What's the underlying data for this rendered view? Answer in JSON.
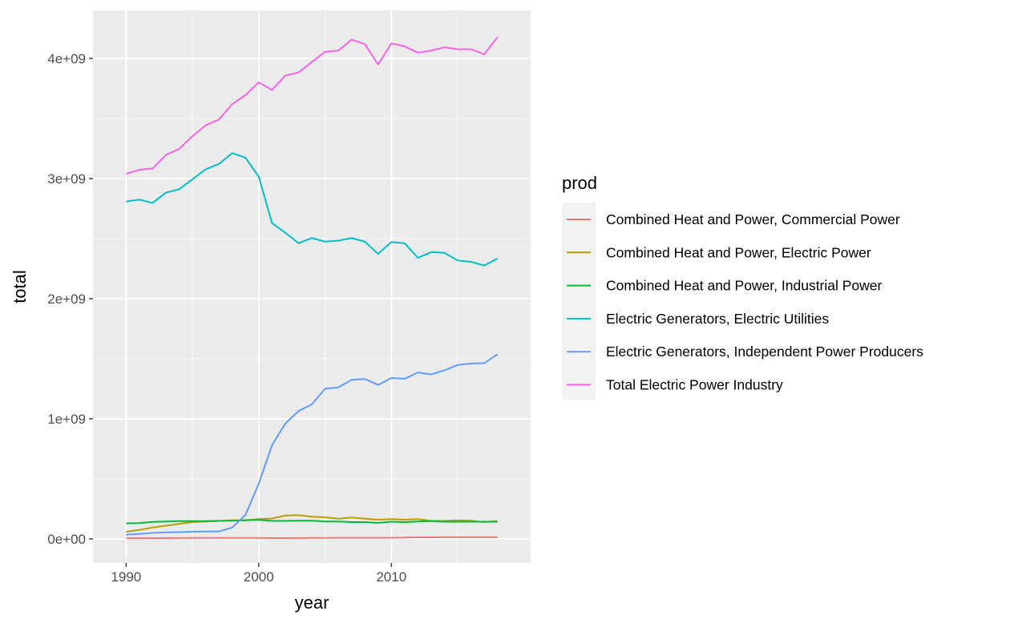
{
  "chart_data": {
    "type": "line",
    "xlabel": "year",
    "ylabel": "total",
    "xlim": [
      1987.5,
      2020.5
    ],
    "ylim": [
      -200000000,
      4400000000
    ],
    "x_ticks": [
      1990,
      2000,
      2010
    ],
    "x_tick_labels": [
      "1990",
      "2000",
      "2010"
    ],
    "y_ticks": [
      0,
      1000000000,
      2000000000,
      3000000000,
      4000000000
    ],
    "y_tick_labels": [
      "0e+00",
      "1e+09",
      "2e+09",
      "3e+09",
      "4e+09"
    ],
    "grid": true,
    "legend": {
      "title": "prod",
      "placement": "right"
    },
    "x": [
      1990,
      1991,
      1992,
      1993,
      1994,
      1995,
      1996,
      1997,
      1998,
      1999,
      2000,
      2001,
      2002,
      2003,
      2004,
      2005,
      2006,
      2007,
      2008,
      2009,
      2010,
      2011,
      2012,
      2013,
      2014,
      2015,
      2016,
      2017,
      2018
    ],
    "series": [
      {
        "name": "Combined Heat and Power, Commercial Power",
        "color": "#F8766D",
        "values": [
          6000000,
          6000000,
          6500000,
          7000000,
          7500000,
          8000000,
          8500000,
          8500000,
          8500000,
          8500000,
          8000000,
          7000000,
          7000000,
          7500000,
          8000000,
          8500000,
          9000000,
          9000000,
          9000000,
          9000000,
          9500000,
          11000000,
          13000000,
          13500000,
          14000000,
          14000000,
          14000000,
          14000000,
          14000000
        ]
      },
      {
        "name": "Combined Heat and Power, Electric Power",
        "color": "#B79F00",
        "values": [
          60000000,
          75000000,
          95000000,
          110000000,
          125000000,
          140000000,
          145000000,
          150000000,
          155000000,
          155000000,
          165000000,
          170000000,
          195000000,
          198000000,
          185000000,
          180000000,
          168000000,
          178000000,
          168000000,
          160000000,
          165000000,
          160000000,
          165000000,
          150000000,
          150000000,
          155000000,
          152000000,
          140000000,
          148000000
        ]
      },
      {
        "name": "Combined Heat and Power, Industrial Power",
        "color": "#00BA38",
        "values": [
          130000000,
          132000000,
          142000000,
          145000000,
          148000000,
          148000000,
          148000000,
          150000000,
          152000000,
          156000000,
          158000000,
          150000000,
          150000000,
          152000000,
          152000000,
          145000000,
          145000000,
          140000000,
          140000000,
          133000000,
          143000000,
          140000000,
          145000000,
          148000000,
          143000000,
          143000000,
          143000000,
          143000000,
          143000000
        ]
      },
      {
        "name": "Electric Generators, Electric Utilities",
        "color": "#00BFC4",
        "values": [
          2808000000,
          2825000000,
          2797000000,
          2883000000,
          2911000000,
          2994000000,
          3077000000,
          3122000000,
          3212000000,
          3174000000,
          3015000000,
          2630000000,
          2549000000,
          2462000000,
          2505000000,
          2475000000,
          2483000000,
          2505000000,
          2475000000,
          2373000000,
          2472000000,
          2462000000,
          2340000000,
          2388000000,
          2382000000,
          2318000000,
          2307000000,
          2276000000,
          2335000000
        ]
      },
      {
        "name": "Electric Generators, Independent Power Producers",
        "color": "#619CFF",
        "values": [
          35000000,
          42000000,
          50000000,
          55000000,
          57000000,
          60000000,
          62000000,
          62000000,
          95000000,
          200000000,
          460000000,
          780000000,
          960000000,
          1065000000,
          1120000000,
          1250000000,
          1262000000,
          1324000000,
          1332000000,
          1282000000,
          1340000000,
          1333000000,
          1386000000,
          1370000000,
          1404000000,
          1448000000,
          1460000000,
          1463000000,
          1537000000
        ]
      },
      {
        "name": "Total Electric Power Industry",
        "color": "#F564E3",
        "values": [
          3040000000,
          3073000000,
          3084000000,
          3197000000,
          3247000000,
          3353000000,
          3444000000,
          3492000000,
          3620000000,
          3695000000,
          3802000000,
          3737000000,
          3858000000,
          3883000000,
          3971000000,
          4055000000,
          4065000000,
          4157000000,
          4119000000,
          3950000000,
          4125000000,
          4100000000,
          4048000000,
          4066000000,
          4093000000,
          4077000000,
          4077000000,
          4034000000,
          4178000000
        ]
      }
    ]
  }
}
